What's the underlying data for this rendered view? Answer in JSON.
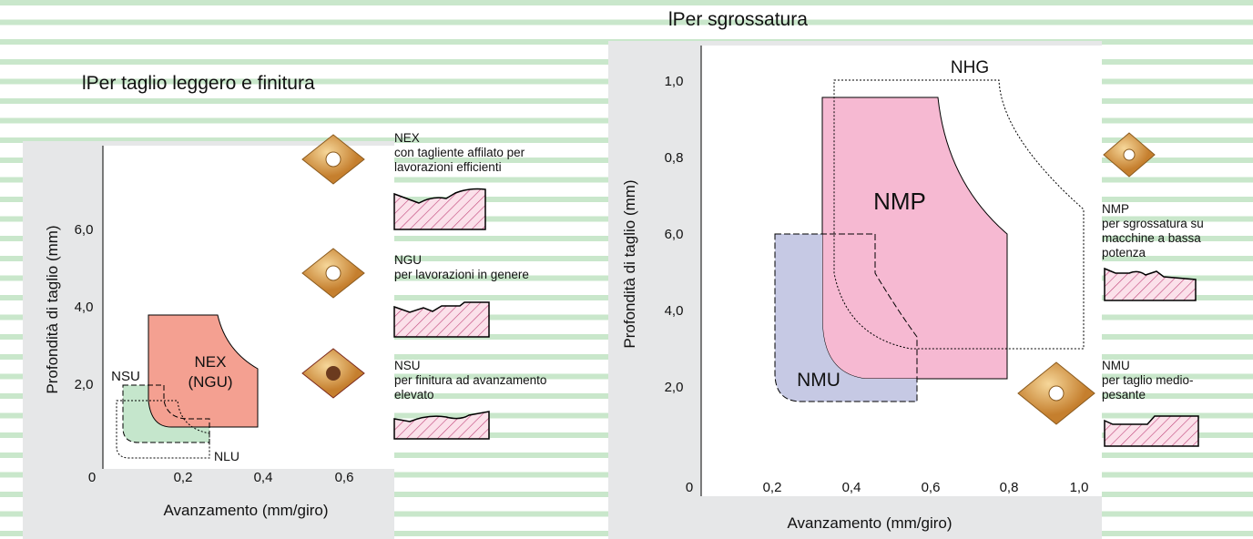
{
  "left": {
    "title": "lPer taglio leggero e finitura",
    "y_label": "Profondità di taglio  (mm)",
    "x_label": "Avanzamento  (mm/giro)",
    "xticks": [
      "0",
      "0,2",
      "0,4",
      "0,6"
    ],
    "yticks": [
      "2,0",
      "4,0",
      "6,0"
    ],
    "regions": [
      "NEX",
      "(NGU)",
      "NSU",
      "NLU"
    ],
    "inserts": [
      {
        "name": "NEX",
        "desc": [
          "con tagliente affilato per",
          "lavorazioni efficienti"
        ]
      },
      {
        "name": "NGU",
        "desc": [
          "per lavorazioni in genere"
        ]
      },
      {
        "name": "NSU",
        "desc": [
          "per finitura ad avanzamento",
          "elevato"
        ]
      }
    ]
  },
  "right": {
    "title": "lPer sgrossatura",
    "y_label": "Profondità di taglio  (mm)",
    "x_label": "Avanzamento   (mm/giro)",
    "xticks": [
      "0",
      "0,2",
      "0,4",
      "0,6",
      "0,8",
      "1,0"
    ],
    "yticks": [
      "2,0",
      "4,0",
      "6,0",
      "0,8",
      "1,0"
    ],
    "regions": [
      "NHG",
      "NMP",
      "NMU"
    ],
    "inserts": [
      {
        "name": "NMP",
        "desc": [
          "per sgrossatura su",
          "macchine a bassa",
          "potenza"
        ]
      },
      {
        "name": "NMU",
        "desc": [
          "per taglio medio-",
          "pesante"
        ]
      }
    ]
  }
}
